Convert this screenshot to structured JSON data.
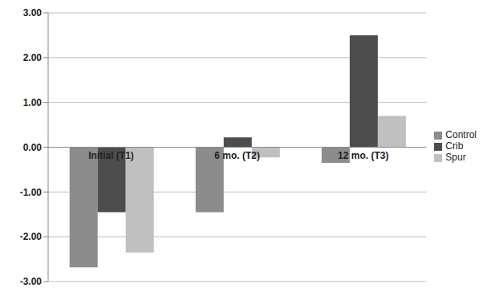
{
  "chart_data": {
    "type": "bar",
    "categories": [
      "Initial (T1)",
      "6 mo. (T2)",
      "12 mo. (T3)"
    ],
    "series": [
      {
        "name": "Control",
        "color": "#8c8c8c",
        "values": [
          -2.68,
          -1.45,
          -0.35
        ]
      },
      {
        "name": "Crib",
        "color": "#4d4d4d",
        "values": [
          -1.45,
          0.22,
          2.5
        ]
      },
      {
        "name": "Spur",
        "color": "#c0c0c0",
        "values": [
          -2.35,
          -0.23,
          0.7
        ]
      }
    ],
    "ylim": [
      -3,
      3
    ],
    "yticks": [
      {
        "value": -3,
        "label": "-3.00"
      },
      {
        "value": -2,
        "label": "-2.00"
      },
      {
        "value": -1,
        "label": "-1.00"
      },
      {
        "value": 0,
        "label": "0.00"
      },
      {
        "value": 1,
        "label": "1.00"
      },
      {
        "value": 2,
        "label": "2.00"
      },
      {
        "value": 3,
        "label": "3.00"
      }
    ],
    "grid": true,
    "legend": "right"
  }
}
